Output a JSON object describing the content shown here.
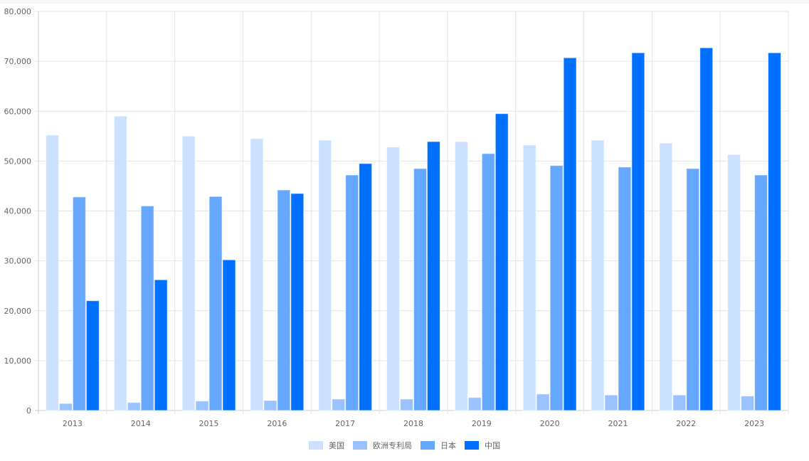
{
  "chart_data": {
    "type": "bar",
    "categories": [
      "2013",
      "2014",
      "2015",
      "2016",
      "2017",
      "2018",
      "2019",
      "2020",
      "2021",
      "2022",
      "2023"
    ],
    "series": [
      {
        "name": "美国",
        "color": "#cce0ff",
        "values": [
          55200,
          59000,
          55000,
          54500,
          54200,
          52800,
          53900,
          53200,
          54200,
          53600,
          51300
        ]
      },
      {
        "name": "欧洲专利局",
        "color": "#99c2ff",
        "values": [
          1400,
          1600,
          1900,
          2000,
          2300,
          2300,
          2600,
          3300,
          3100,
          3100,
          2900
        ]
      },
      {
        "name": "日本",
        "color": "#66a8ff",
        "values": [
          42800,
          41000,
          42900,
          44200,
          47200,
          48500,
          51500,
          49100,
          48800,
          48500,
          47200
        ]
      },
      {
        "name": "中国",
        "color": "#0070ff",
        "values": [
          22000,
          26200,
          30200,
          43500,
          49500,
          53900,
          59500,
          70700,
          71700,
          72700,
          71700
        ]
      }
    ],
    "yticks": [
      "0",
      "10,000",
      "20,000",
      "30,000",
      "40,000",
      "50,000",
      "60,000",
      "70,000",
      "80,000"
    ],
    "ylim": [
      0,
      80000
    ],
    "grid": true,
    "legend": "bottom",
    "title": "",
    "xlabel": "",
    "ylabel": ""
  }
}
